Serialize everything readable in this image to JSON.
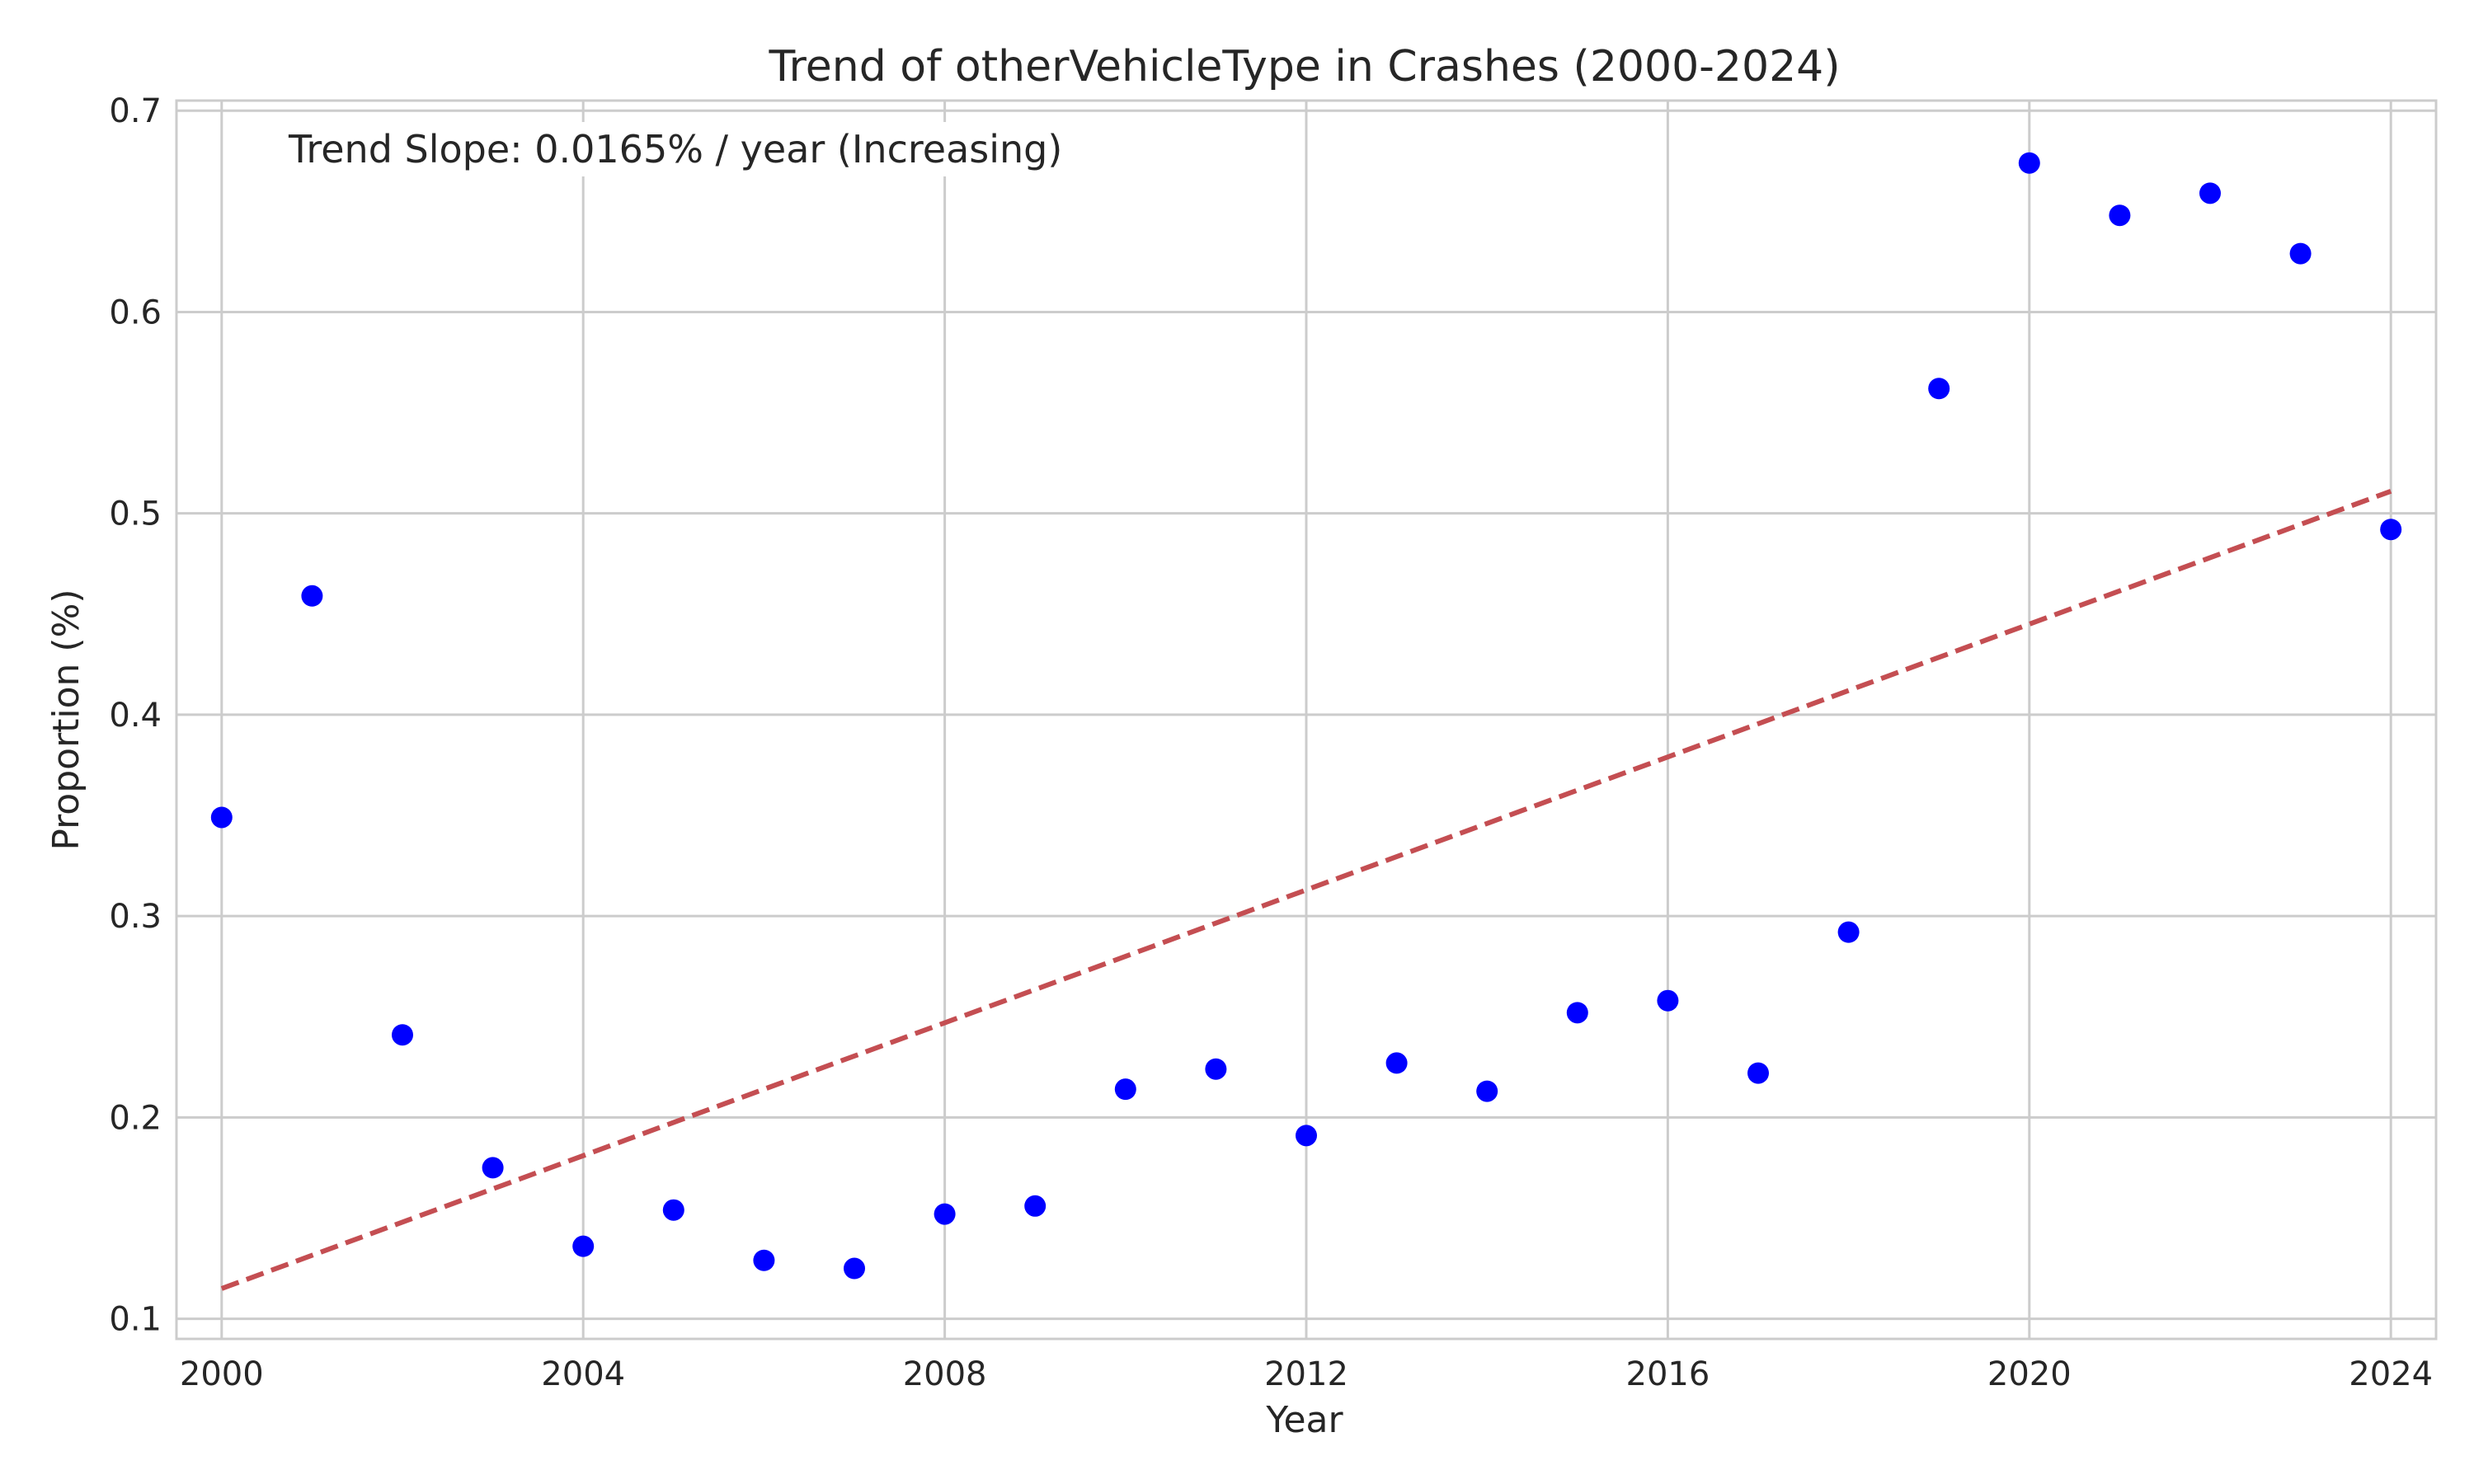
{
  "chart_data": {
    "type": "scatter",
    "title": "Trend of otherVehicleType in Crashes (2000-2024)",
    "xlabel": "Year",
    "ylabel": "Proportion (%)",
    "xlim": [
      1999.5,
      2024.5
    ],
    "ylim": [
      0.09,
      0.705
    ],
    "xticks": [
      2000,
      2004,
      2008,
      2012,
      2016,
      2020,
      2024
    ],
    "yticks": [
      0.1,
      0.2,
      0.3,
      0.4,
      0.5,
      0.6,
      0.7
    ],
    "ytick_labels": [
      "0.1",
      "0.2",
      "0.3",
      "0.4",
      "0.5",
      "0.6",
      "0.7"
    ],
    "grid": true,
    "x": [
      2000,
      2001,
      2002,
      2003,
      2004,
      2005,
      2006,
      2007,
      2008,
      2009,
      2010,
      2011,
      2012,
      2013,
      2014,
      2015,
      2016,
      2017,
      2018,
      2019,
      2020,
      2021,
      2022,
      2023,
      2024
    ],
    "y": [
      0.349,
      0.459,
      0.241,
      0.175,
      0.136,
      0.154,
      0.129,
      0.125,
      0.152,
      0.156,
      0.214,
      0.224,
      0.191,
      0.227,
      0.213,
      0.252,
      0.258,
      0.222,
      0.292,
      0.562,
      0.674,
      0.648,
      0.659,
      0.629,
      0.492
    ],
    "trend": {
      "x": [
        2000,
        2024
      ],
      "y": [
        0.115,
        0.511
      ]
    },
    "colors": {
      "points": "#0000ff",
      "trend": "#c44e52"
    },
    "annotation": "Trend Slope: 0.0165% / year (Increasing)"
  }
}
